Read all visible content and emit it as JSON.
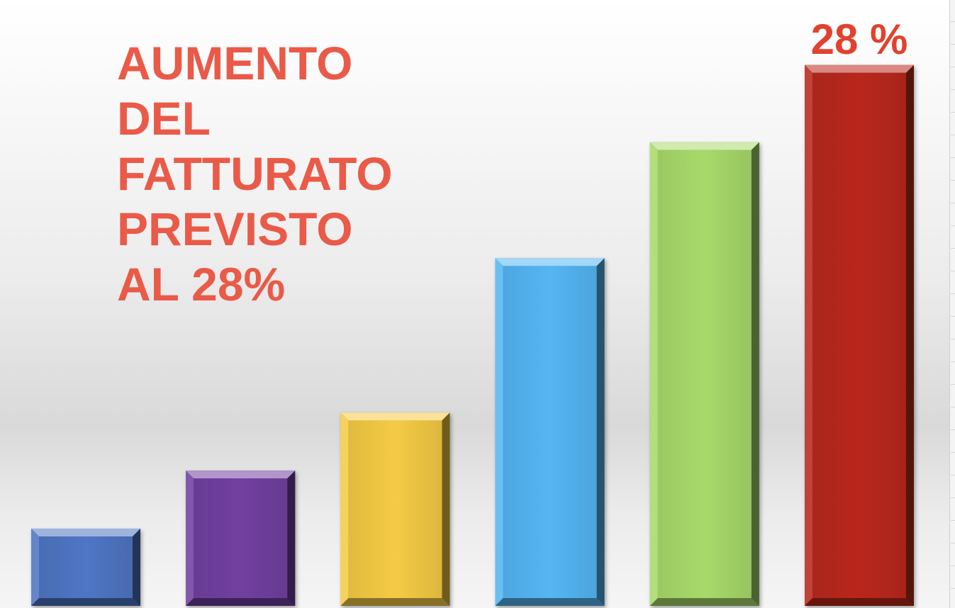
{
  "chart_data": {
    "type": "bar",
    "title_lines": [
      "AUMENTO",
      "DEL",
      "FATTURATO",
      "PREVISTO",
      "AL 28%"
    ],
    "categories": [
      "",
      "",
      "",
      "",
      "",
      ""
    ],
    "values": [
      4,
      7,
      10,
      18,
      24,
      28
    ],
    "ylim": [
      0,
      31
    ],
    "colors": [
      "#4f76c4",
      "#7140a0",
      "#f5cb45",
      "#55b6f3",
      "#a8da6a",
      "#b9281c"
    ],
    "data_labels": [
      "",
      "",
      "",
      "",
      "",
      "28 %"
    ],
    "data_label_color": "#e2412f",
    "title_color": "#ea5a48",
    "axes_visible": false,
    "grid": false,
    "legend": "none"
  }
}
